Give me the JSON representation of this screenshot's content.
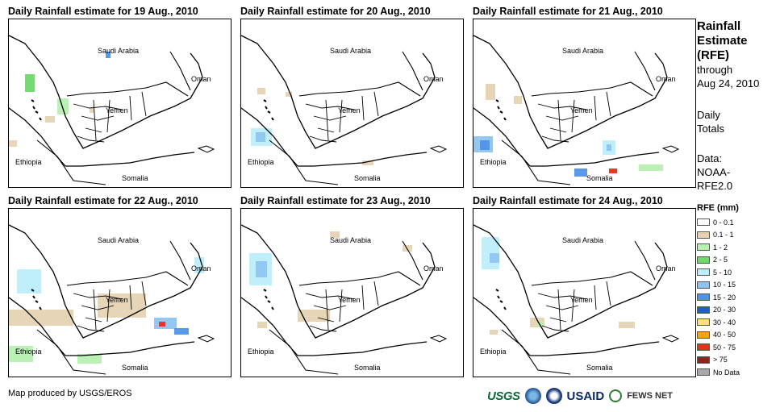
{
  "panels": [
    {
      "title": "Daily Rainfall estimate for 19 Aug., 2010",
      "labels": {
        "saudi": "Saudi Arabia",
        "yemen": "Yemen",
        "oman": "Oman",
        "ethiopia": "Ethiopia",
        "somalia": "Somalia"
      }
    },
    {
      "title": "Daily Rainfall estimate for 20 Aug., 2010",
      "labels": {
        "saudi": "Saudi Arabia",
        "yemen": "Yemen",
        "oman": "Oman",
        "ethiopia": "Ethiopia",
        "somalia": "Somalia"
      }
    },
    {
      "title": "Daily Rainfall estimate for 21 Aug., 2010",
      "labels": {
        "saudi": "Saudi Arabia",
        "yemen": "Yemen",
        "oman": "Oman",
        "ethiopia": "Ethiopia",
        "somalia": "Somalia"
      }
    },
    {
      "title": "Daily Rainfall estimate for 22 Aug., 2010",
      "labels": {
        "saudi": "Saudi Arabia",
        "yemen": "Yemen",
        "oman": "Oman",
        "ethiopia": "Ethiopia",
        "somalia": "Somalia"
      }
    },
    {
      "title": "Daily Rainfall estimate for 23 Aug., 2010",
      "labels": {
        "saudi": "Saudi Arabia",
        "yemen": "Yemen",
        "oman": "Oman",
        "ethiopia": "Ethiopia",
        "somalia": "Somalia"
      }
    },
    {
      "title": "Daily Rainfall estimate for 24 Aug., 2010",
      "labels": {
        "saudi": "Saudi Arabia",
        "yemen": "Yemen",
        "oman": "Oman",
        "ethiopia": "Ethiopia",
        "somalia": "Somalia"
      }
    }
  ],
  "sidebar": {
    "heading_lines": [
      "Rainfall",
      "Estimate",
      "(RFE)"
    ],
    "through": "through",
    "date": "Aug 24, 2010",
    "daily": "Daily",
    "totals": "Totals",
    "data_label": "Data:",
    "source_1": "NOAA-",
    "source_2": "RFE2.0"
  },
  "legend": {
    "title": "RFE (mm)",
    "items": [
      {
        "label": "0 - 0.1",
        "color": "#ffffff"
      },
      {
        "label": "0.1 - 1",
        "color": "#e6d3b3"
      },
      {
        "label": "1 - 2",
        "color": "#b7f0b1"
      },
      {
        "label": "2 - 5",
        "color": "#6fd86a"
      },
      {
        "label": "5 - 10",
        "color": "#bdeefc"
      },
      {
        "label": "10 - 15",
        "color": "#8ec5f0"
      },
      {
        "label": "15 - 20",
        "color": "#4f93e8"
      },
      {
        "label": "20 - 30",
        "color": "#1f5fd6"
      },
      {
        "label": "30 - 40",
        "color": "#ffe07a"
      },
      {
        "label": "40 - 50",
        "color": "#f7a21a"
      },
      {
        "label": "50 - 75",
        "color": "#e3321c"
      },
      {
        "label": "> 75",
        "color": "#9b1c1c"
      },
      {
        "label": "No Data",
        "color": "#a8a8a8"
      }
    ]
  },
  "footer": {
    "credit": "Map produced by USGS/EROS",
    "logo_usgs": "USGS",
    "logo_usaid": "USAID",
    "logo_fews": "FEWS NET"
  }
}
